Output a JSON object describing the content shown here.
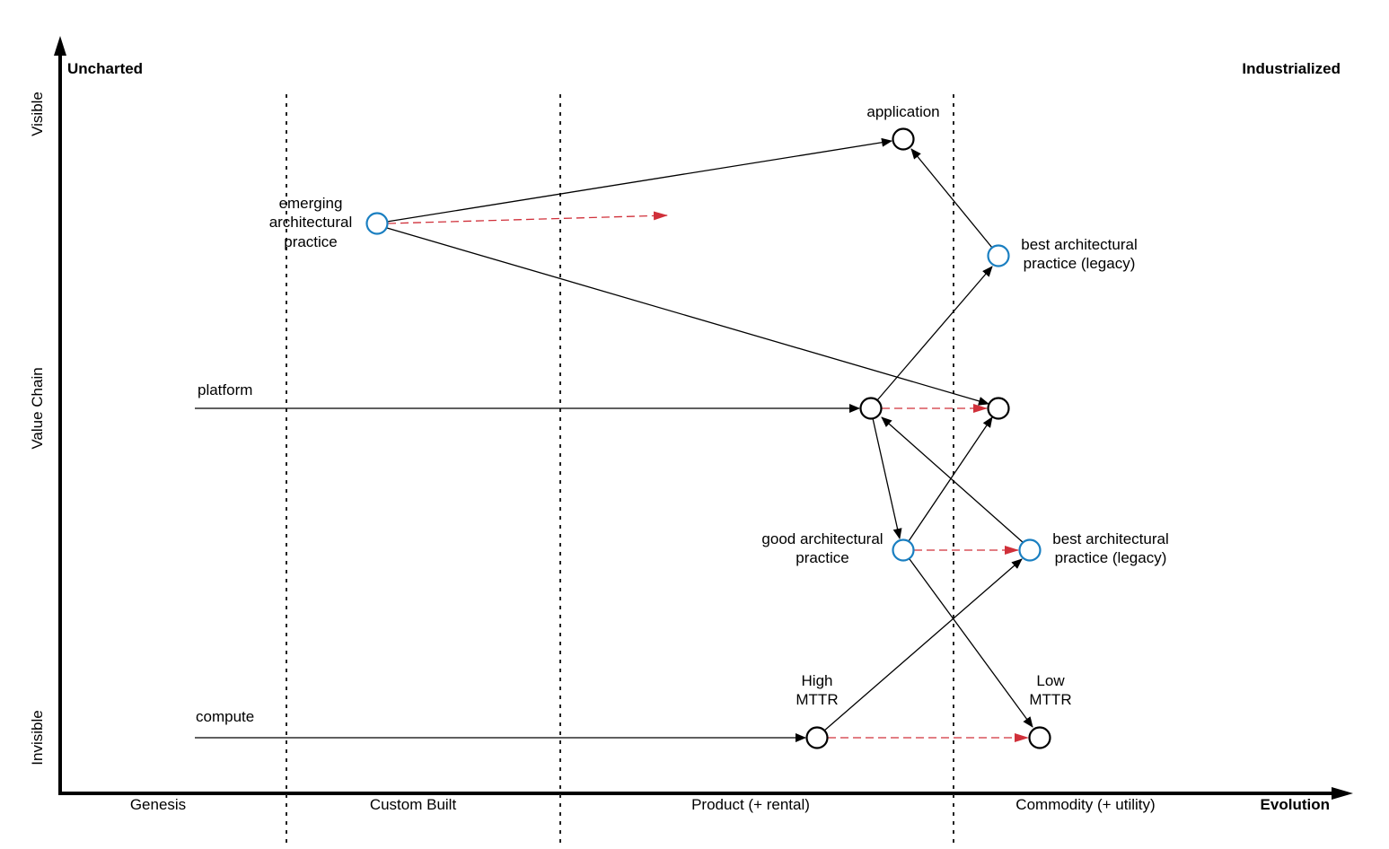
{
  "corners": {
    "top_left": "Uncharted",
    "top_right": "Industrialized"
  },
  "y_axis": {
    "top": "Visible",
    "middle": "Value Chain",
    "bottom": "Invisible"
  },
  "x_axis": {
    "stages": [
      "Genesis",
      "Custom Built",
      "Product (+ rental)",
      "Commodity (+ utility)"
    ],
    "label": "Evolution"
  },
  "components": {
    "application": "application",
    "emerging": [
      "emerging",
      "architectural",
      "practice"
    ],
    "best_top": [
      "best architectural",
      "practice (legacy)"
    ],
    "platform": "platform",
    "good": [
      "good architectural",
      "practice"
    ],
    "best_bottom": [
      "best architectural",
      "practice (legacy)"
    ],
    "compute": "compute",
    "high_mttr": [
      "High",
      "MTTR"
    ],
    "low_mttr": [
      "Low",
      "MTTR"
    ]
  },
  "colors": {
    "component": "#000000",
    "practice": "#1a7fc1",
    "evolution_arrow": "#d0303a"
  }
}
